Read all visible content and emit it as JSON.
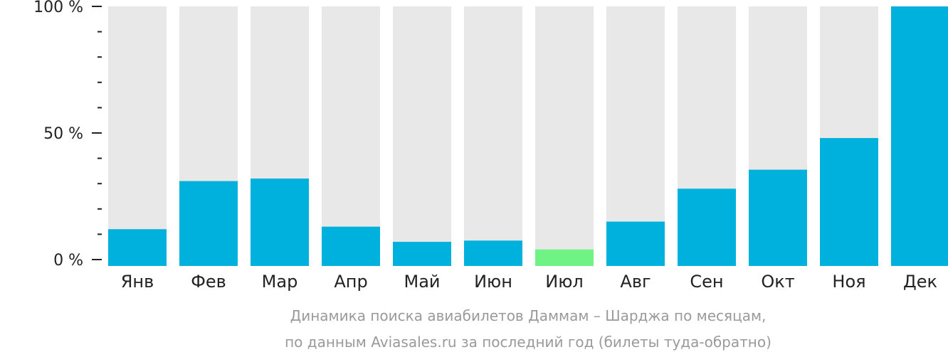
{
  "chart_data": {
    "type": "bar",
    "categories": [
      "Янв",
      "Фев",
      "Мар",
      "Апр",
      "Май",
      "Июн",
      "Июл",
      "Авг",
      "Сен",
      "Окт",
      "Ноя",
      "Дек"
    ],
    "values": [
      12,
      31,
      32,
      13,
      7,
      7.5,
      4,
      15,
      28,
      35.5,
      48,
      100
    ],
    "ylim": [
      0,
      100
    ],
    "y_ticks": [
      {
        "value": 0,
        "label": "0 %"
      },
      {
        "value": 50,
        "label": "50 %"
      },
      {
        "value": 100,
        "label": "100 %"
      }
    ],
    "minor_tick_step": 10,
    "highlight_index": 6,
    "colors": {
      "bar": "#00b0dd",
      "highlight": "#6ff384",
      "background_bar": "#e8e8e8",
      "axis": "#222222",
      "caption": "#9a9a9a"
    },
    "caption": [
      "Динамика поиска авиабилетов Даммам – Шарджа по месяцам,",
      "по данным Aviasales.ru за последний год (билеты туда-обратно)"
    ]
  }
}
